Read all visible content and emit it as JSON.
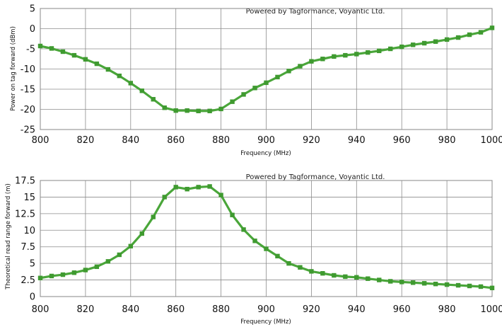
{
  "chart_data": [
    {
      "type": "line",
      "annotation": "Powered by Tagformance, Voyantic Ltd.",
      "xlabel": "Frequency (MHz)",
      "ylabel": "Power on tag forward (dBm)",
      "xlim": [
        800,
        1000
      ],
      "ylim": [
        -25,
        5
      ],
      "xticks": [
        "800",
        "820",
        "840",
        "860",
        "880",
        "900",
        "920",
        "940",
        "960",
        "980",
        "1000"
      ],
      "yticks": [
        "5",
        "0",
        "-5",
        "-10",
        "-15",
        "-20",
        "-25"
      ],
      "grid": true,
      "line_color": "#4aa63a",
      "marker_color": "#3f9a30",
      "x": [
        800,
        805,
        810,
        815,
        820,
        825,
        830,
        835,
        840,
        845,
        850,
        855,
        860,
        865,
        870,
        875,
        880,
        885,
        890,
        895,
        900,
        905,
        910,
        915,
        920,
        925,
        930,
        935,
        940,
        945,
        950,
        955,
        960,
        965,
        970,
        975,
        980,
        985,
        990,
        995,
        1000
      ],
      "series": [
        {
          "values": [
            -4.3,
            -4.9,
            -5.7,
            -6.6,
            -7.6,
            -8.7,
            -10.1,
            -11.7,
            -13.5,
            -15.4,
            -17.5,
            -19.6,
            -20.3,
            -20.3,
            -20.4,
            -20.4,
            -19.9,
            -18.1,
            -16.3,
            -14.7,
            -13.4,
            -12.0,
            -10.5,
            -9.3,
            -8.1,
            -7.5,
            -6.9,
            -6.6,
            -6.3,
            -5.9,
            -5.5,
            -5.0,
            -4.5,
            -4.0,
            -3.6,
            -3.2,
            -2.7,
            -2.2,
            -1.5,
            -0.9,
            0.2
          ]
        }
      ]
    },
    {
      "type": "line",
      "annotation": "Powered by Tagformance, Voyantic Ltd.",
      "xlabel": "Frequency (MHz)",
      "ylabel": "Theoretical read range forward (m)",
      "xlim": [
        800,
        1000
      ],
      "ylim": [
        0,
        17.5
      ],
      "xticks": [
        "800",
        "820",
        "840",
        "860",
        "880",
        "900",
        "920",
        "940",
        "960",
        "980",
        "1000"
      ],
      "yticks": [
        "17.5",
        "15",
        "12.5",
        "10",
        "7.5",
        "5",
        "2.5",
        "0"
      ],
      "grid": true,
      "line_color": "#4aa63a",
      "marker_color": "#3f9a30",
      "x": [
        800,
        805,
        810,
        815,
        820,
        825,
        830,
        835,
        840,
        845,
        850,
        855,
        860,
        865,
        870,
        875,
        880,
        885,
        890,
        895,
        900,
        905,
        910,
        915,
        920,
        925,
        930,
        935,
        940,
        945,
        950,
        955,
        960,
        965,
        970,
        975,
        980,
        985,
        990,
        995,
        1000
      ],
      "series": [
        {
          "values": [
            2.8,
            3.1,
            3.3,
            3.6,
            4.0,
            4.5,
            5.3,
            6.3,
            7.6,
            9.5,
            12.0,
            15.0,
            16.5,
            16.2,
            16.5,
            16.6,
            15.3,
            12.3,
            10.1,
            8.4,
            7.2,
            6.1,
            5.0,
            4.4,
            3.8,
            3.5,
            3.2,
            3.0,
            2.9,
            2.7,
            2.5,
            2.3,
            2.2,
            2.1,
            2.0,
            1.9,
            1.8,
            1.7,
            1.6,
            1.5,
            1.3
          ]
        }
      ]
    }
  ]
}
